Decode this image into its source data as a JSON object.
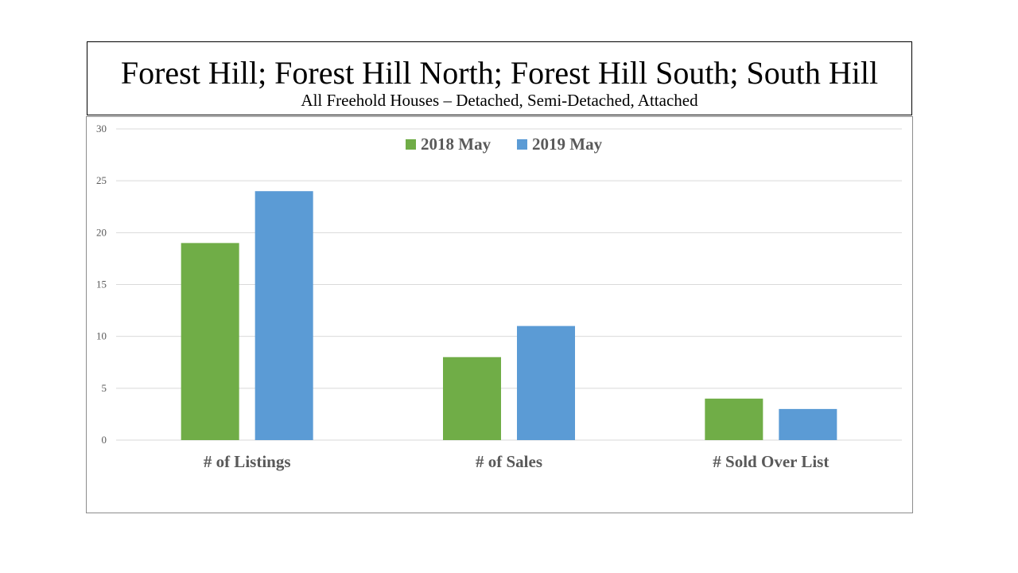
{
  "header": {
    "title": "Forest Hill; Forest Hill North; Forest Hill South; South Hill",
    "subtitle": "All Freehold Houses – Detached, Semi-Detached, Attached"
  },
  "colors": {
    "series_2018": "#70ad47",
    "series_2019": "#5b9bd5",
    "gridline": "#d9d9d9",
    "text": "#595959"
  },
  "chart_data": {
    "type": "bar",
    "title": "Forest Hill; Forest Hill North; Forest Hill South; South Hill",
    "subtitle": "All Freehold Houses – Detached, Semi-Detached, Attached",
    "xlabel": "",
    "ylabel": "",
    "categories": [
      "# of Listings",
      "# of Sales",
      "# Sold Over List"
    ],
    "series": [
      {
        "name": "2018 May",
        "values": [
          19,
          8,
          4
        ]
      },
      {
        "name": "2019 May",
        "values": [
          24,
          11,
          3
        ]
      }
    ],
    "ylim": [
      0,
      30
    ],
    "yticks": [
      0,
      5,
      10,
      15,
      20,
      25,
      30
    ],
    "grid": true,
    "legend": "top-center"
  }
}
